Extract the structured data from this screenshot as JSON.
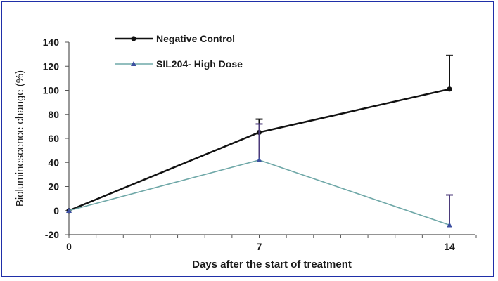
{
  "chart_data": {
    "type": "line",
    "title": "",
    "xlabel": "Days after the start of treatment",
    "ylabel": "Bioluminescence  change (%)",
    "x": [
      0,
      7,
      14
    ],
    "x_ticks": [
      "0",
      "7",
      "14"
    ],
    "xlim": [
      0,
      14
    ],
    "ylim": [
      -20,
      140
    ],
    "y_ticks": [
      "-20",
      "0",
      "20",
      "40",
      "60",
      "80",
      "100",
      "120",
      "140"
    ],
    "grid": false,
    "legend_position": "top-left",
    "series": [
      {
        "name": "Negative Control",
        "values": [
          0,
          65,
          101
        ],
        "error_upper": [
          0,
          11,
          28
        ],
        "color": "#111111",
        "marker": "circle"
      },
      {
        "name": "SIL204- High Dose",
        "values": [
          0,
          42,
          -12
        ],
        "error_upper": [
          0,
          30,
          25
        ],
        "color": "#6fa8a8",
        "error_color": "#4b3a7a",
        "marker": "triangle"
      }
    ]
  }
}
